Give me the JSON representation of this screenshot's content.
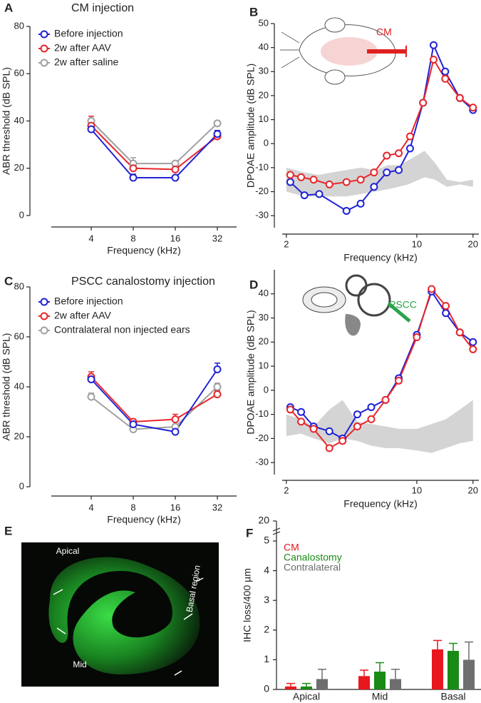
{
  "chart_data": [
    {
      "type": "line",
      "panel": "A",
      "title": "CM injection",
      "xlabel": "Frequency (kHz)",
      "ylabel": "ABR threshold (dB SPL)",
      "categories": [
        "4",
        "8",
        "16",
        "32"
      ],
      "ylim": [
        0,
        80
      ],
      "yticks": [
        0,
        20,
        40,
        60,
        80
      ],
      "series": [
        {
          "name": "Before injection",
          "color": "#1f22d6",
          "values": [
            36.5,
            16,
            16,
            34.5
          ],
          "errors": [
            1,
            1.5,
            0.5,
            1.5
          ]
        },
        {
          "name": "2w after AAV",
          "color": "#e8262b",
          "values": [
            38,
            20,
            19.5,
            33.5
          ],
          "errors": [
            4,
            2,
            2,
            1.5
          ]
        },
        {
          "name": "2w after saline",
          "color": "#a0a0a0",
          "values": [
            40,
            22,
            22,
            39
          ],
          "errors": [
            1,
            2.5,
            1,
            0.5
          ]
        }
      ]
    },
    {
      "type": "line",
      "panel": "B",
      "xlabel": "Frequency (kHz)",
      "ylabel": "DPOAE amplitude (dB SPL)",
      "annotation": "CM",
      "xscale": "log",
      "xlim": [
        1.9,
        21.5
      ],
      "xticks": [
        2,
        10,
        20
      ],
      "ylim": [
        -35,
        50
      ],
      "yticks": [
        -30,
        -20,
        -10,
        0,
        10,
        20,
        30,
        40,
        50
      ],
      "band": {
        "color": "#d4d4d4",
        "x": [
          2,
          2.5,
          3,
          3.5,
          4.2,
          5,
          6,
          7,
          8,
          9,
          11,
          12.5,
          14.5,
          17,
          20
        ],
        "upper": [
          -10,
          -12,
          -13,
          -12,
          -11,
          -10,
          -11,
          -9,
          -9,
          -7,
          -3,
          -8,
          -15,
          -16,
          -15
        ],
        "lower": [
          -20,
          -22,
          -22,
          -22,
          -22,
          -21,
          -20,
          -19,
          -18,
          -17,
          -14,
          -15,
          -18,
          -17,
          -18
        ]
      },
      "series": [
        {
          "color": "#e8262b",
          "x": [
            2.1,
            2.4,
            2.8,
            3.4,
            4.2,
            5.0,
            5.9,
            6.9,
            8.0,
            9.2,
            10.8,
            12.3,
            14.2,
            17.0,
            20.0
          ],
          "values": [
            -13,
            -14,
            -15,
            -17,
            -16,
            -15,
            -12,
            -5,
            -4,
            3,
            17,
            35,
            27,
            19,
            15
          ]
        },
        {
          "color": "#1f22d6",
          "x": [
            2.1,
            2.5,
            3.0,
            4.2,
            5.0,
            5.9,
            6.9,
            8.0,
            9.2,
            10.8,
            12.3,
            14.2,
            17.0,
            20.0
          ],
          "values": [
            -16,
            -21.5,
            -21,
            -28,
            -25,
            -18,
            -12,
            -11,
            -2,
            17,
            41,
            30,
            19,
            14
          ]
        }
      ]
    },
    {
      "type": "line",
      "panel": "C",
      "title": "PSCC canalostomy injection",
      "xlabel": "Frequency (kHz)",
      "ylabel": "ABR threshold (dB SPL)",
      "categories": [
        "4",
        "8",
        "16",
        "32"
      ],
      "ylim": [
        0,
        80
      ],
      "yticks": [
        0,
        20,
        40,
        60,
        80
      ],
      "series": [
        {
          "name": "Before injection",
          "color": "#1f22d6",
          "values": [
            43,
            25,
            22,
            47
          ],
          "errors": [
            2,
            1,
            1.5,
            2.5
          ]
        },
        {
          "name": "2w after AAV",
          "color": "#e8262b",
          "values": [
            44,
            26,
            27,
            37
          ],
          "errors": [
            2,
            1,
            2,
            1.5
          ]
        },
        {
          "name": "Contralateral non injected ears",
          "color": "#a0a0a0",
          "values": [
            36,
            23,
            24,
            40
          ],
          "errors": [
            1.5,
            1,
            1,
            1.5
          ]
        }
      ]
    },
    {
      "type": "line",
      "panel": "D",
      "xlabel": "Frequency (kHz)",
      "ylabel": "DPOAE amplitude (dB SPL)",
      "annotation": "PSCC",
      "xscale": "log",
      "xlim": [
        1.9,
        21.5
      ],
      "xticks": [
        2,
        10,
        20
      ],
      "ylim": [
        -35,
        50
      ],
      "yticks": [
        -30,
        -20,
        -10,
        0,
        10,
        20,
        30,
        40
      ],
      "band": {
        "color": "#d4d4d4",
        "x": [
          2,
          2.4,
          2.8,
          3.4,
          4,
          4.8,
          5.7,
          6.8,
          8,
          10,
          12,
          14.3,
          17,
          20
        ],
        "upper": [
          -10,
          -12,
          -15,
          -8,
          -4,
          -13,
          -14,
          -15,
          -16,
          -16,
          -14,
          -12,
          -8,
          -4
        ],
        "lower": [
          -19,
          -18,
          -20,
          -22,
          -20,
          -21,
          -23,
          -24,
          -24,
          -25,
          -26,
          -24,
          -22,
          -21
        ]
      },
      "series": [
        {
          "color": "#e8262b",
          "x": [
            2.1,
            2.4,
            2.8,
            3.4,
            4.0,
            4.8,
            5.7,
            6.8,
            8.0,
            10,
            12,
            14.3,
            17,
            20
          ],
          "values": [
            -8,
            -13,
            -16,
            -24,
            -21,
            -15,
            -12,
            -4,
            4,
            22,
            42,
            35,
            24,
            17
          ]
        },
        {
          "color": "#1f22d6",
          "x": [
            2.1,
            2.4,
            2.8,
            3.4,
            4.0,
            4.8,
            5.7,
            6.8,
            8.0,
            10,
            12,
            14.3,
            17,
            20
          ],
          "values": [
            -7,
            -9,
            -15,
            -17,
            -20,
            -10,
            -7,
            -4,
            5,
            23,
            41,
            32,
            24,
            20
          ]
        }
      ]
    },
    {
      "type": "image",
      "panel": "E",
      "labels": [
        "Apical",
        "Basal region",
        "Mid"
      ]
    },
    {
      "type": "bar",
      "panel": "F",
      "ylabel": "IHC loss/400 µm",
      "categories": [
        "Apical",
        "Mid",
        "Basal"
      ],
      "ylim": [
        0,
        5
      ],
      "yticks": [
        0,
        1,
        2,
        3,
        4,
        5
      ],
      "break_ticks": [
        20
      ],
      "series": [
        {
          "name": "CM",
          "color": "#e8171d",
          "values": [
            0.1,
            0.45,
            1.35
          ],
          "errors": [
            0.1,
            0.2,
            0.3
          ]
        },
        {
          "name": "Canalostomy",
          "color": "#1a8a16",
          "values": [
            0.1,
            0.6,
            1.3
          ],
          "errors": [
            0.1,
            0.3,
            0.25
          ]
        },
        {
          "name": "Contralateral",
          "color": "#6e6e6e",
          "values": [
            0.35,
            0.35,
            1.0
          ],
          "errors": [
            0.33,
            0.33,
            0.6
          ]
        }
      ]
    }
  ]
}
